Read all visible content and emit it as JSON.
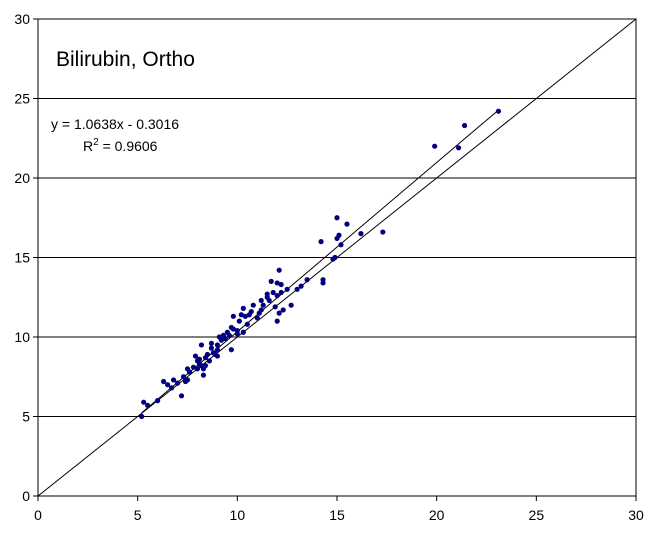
{
  "chart_data": {
    "type": "scatter",
    "title": "Bilirubin, Ortho",
    "xlabel": "",
    "ylabel": "",
    "xlim": [
      0,
      30
    ],
    "ylim": [
      0,
      30
    ],
    "x_ticks": [
      "0",
      "5",
      "10",
      "15",
      "20",
      "25",
      "30"
    ],
    "y_ticks": [
      "0",
      "5",
      "10",
      "15",
      "20",
      "25",
      "30"
    ],
    "grid": "horizontal",
    "annotations": {
      "equation": "y = 1.0638x - 0.3016",
      "r2_prefix": "R",
      "r2_sup": "2",
      "r2_value": " = 0.9606"
    },
    "trendline": {
      "slope": 1.0638,
      "intercept": -0.3016,
      "x_range": [
        5.2,
        23.1
      ]
    },
    "identity_line": {
      "x_range": [
        0,
        30
      ]
    },
    "colors": {
      "points": "#000080",
      "lines": "#000000",
      "grid": "#000000",
      "plot_bg": "#ffffff"
    },
    "series": [
      {
        "x": [
          5.2,
          5.3,
          5.5,
          6.0,
          6.3,
          6.5,
          6.7,
          6.8,
          7.0,
          7.2,
          7.3,
          7.4,
          7.5,
          7.5,
          7.6,
          7.8,
          7.9,
          8.0,
          8.0,
          8.1,
          8.1,
          8.2,
          8.2,
          8.3,
          8.3,
          8.4,
          8.5,
          8.6,
          8.7,
          8.7,
          8.8,
          8.9,
          9.0,
          9.0,
          9.1,
          9.2,
          9.3,
          9.4,
          9.5,
          9.6,
          9.7,
          9.8,
          9.8,
          10.0,
          10.1,
          10.2,
          10.3,
          10.3,
          10.4,
          10.5,
          10.6,
          10.7,
          10.8,
          11.0,
          11.1,
          11.2,
          11.3,
          11.5,
          11.6,
          11.7,
          11.8,
          11.9,
          12.0,
          12.0,
          12.1,
          12.1,
          12.2,
          12.3,
          12.5,
          12.7,
          13.0,
          13.2,
          13.5,
          14.2,
          14.3,
          14.3,
          14.8,
          14.9,
          15.0,
          15.0,
          15.1,
          15.2,
          15.5,
          16.2,
          17.3,
          19.9,
          21.1,
          21.4,
          23.1,
          8.4,
          9.7,
          10.0,
          11.2,
          11.5,
          12.0,
          12.2,
          9.0
        ],
        "y": [
          5.0,
          5.9,
          5.7,
          6.0,
          7.2,
          7.0,
          6.8,
          7.3,
          7.1,
          6.3,
          7.5,
          7.2,
          7.3,
          8.0,
          7.8,
          8.1,
          8.8,
          8.5,
          8.0,
          8.6,
          8.3,
          9.5,
          8.2,
          8.0,
          7.6,
          8.7,
          8.9,
          8.5,
          9.3,
          9.6,
          9.0,
          8.9,
          9.5,
          9.2,
          10.0,
          9.8,
          10.1,
          9.9,
          10.3,
          10.1,
          9.2,
          11.3,
          10.5,
          10.2,
          11.0,
          11.4,
          11.8,
          10.3,
          11.3,
          10.8,
          11.4,
          11.6,
          12.0,
          11.2,
          11.5,
          11.7,
          12.0,
          12.7,
          12.3,
          13.5,
          12.8,
          11.9,
          11.0,
          12.6,
          14.2,
          11.5,
          13.3,
          11.7,
          13.0,
          12.0,
          13.0,
          13.2,
          13.6,
          16.0,
          13.6,
          13.4,
          14.9,
          15.0,
          16.2,
          17.5,
          16.4,
          15.8,
          17.1,
          16.5,
          16.6,
          22.0,
          21.9,
          23.3,
          24.2,
          8.2,
          10.6,
          10.4,
          12.3,
          12.5,
          13.4,
          12.8,
          8.8
        ]
      }
    ]
  }
}
